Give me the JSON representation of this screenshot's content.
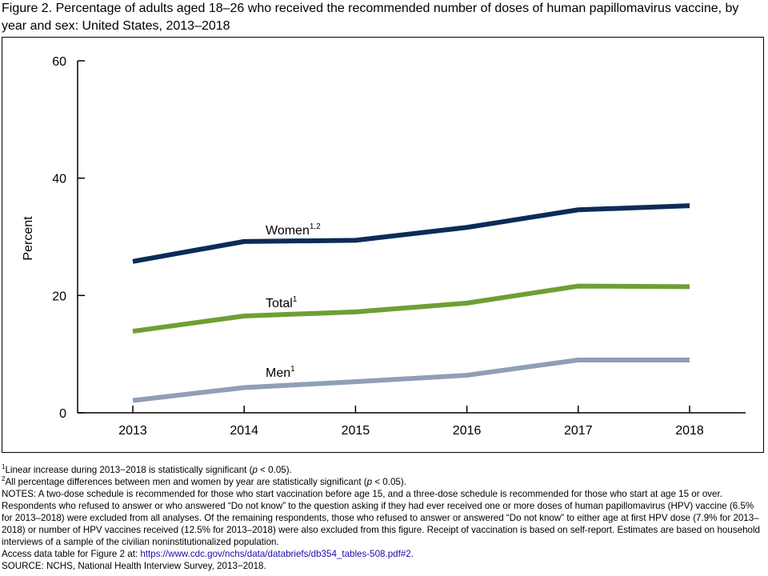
{
  "title": "Figure 2. Percentage of adults aged 18–26 who received the recommended number of doses of human papillomavirus vaccine, by year and sex: United States, 2013–2018",
  "colors": {
    "women": "#0b2c56",
    "total": "#6e9f34",
    "men": "#8f9fb5"
  },
  "chart_data": {
    "type": "line",
    "title": "Figure 2. Percentage of adults aged 18–26 who received the recommended number of doses of human papillomavirus vaccine, by year and sex: United States, 2013–2018",
    "xlabel": "",
    "ylabel": "Percent",
    "ylim": [
      0,
      60
    ],
    "yticks": [
      "0",
      "20",
      "40",
      "60"
    ],
    "categories": [
      "2013",
      "2014",
      "2015",
      "2016",
      "2017",
      "2018"
    ],
    "grid": false,
    "legend": "inline labels",
    "series": [
      {
        "name": "Women",
        "sup": "1,2",
        "values": [
          25.8,
          29.2,
          29.4,
          31.6,
          34.6,
          35.3
        ]
      },
      {
        "name": "Total",
        "sup": "1",
        "values": [
          13.9,
          16.5,
          17.2,
          18.7,
          21.6,
          21.5
        ]
      },
      {
        "name": "Men",
        "sup": "1",
        "values": [
          2.1,
          4.3,
          5.3,
          6.4,
          9.0,
          9.0
        ]
      }
    ]
  },
  "notes": {
    "fn1_sup": "1",
    "fn1_a": "Linear increase during 2013−2018 is statistically significant (",
    "fn1_p": "p",
    "fn1_b": " < 0.05).",
    "fn2_sup": "2",
    "fn2_a": "All percentage differences between men and women by year are statistically significant (",
    "fn2_p": "p",
    "fn2_b": " < 0.05).",
    "notes_text": "NOTES: A two-dose schedule is recommended for those who start vaccination before age 15, and a three-dose schedule is recommended for those who start at age 15 or over. Respondents who refused to answer or who answered “Do not know” to the question asking if they had ever received one or more doses of human papillomavirus (HPV) vaccine (6.5% for 2013–2018) were excluded from all analyses. Of the remaining respondents, those who refused to answer or answered “Do not know” to either age at first HPV dose (7.9% for 2013–2018) or number of HPV vaccines received (12.5% for 2013–2018) were also excluded from this figure. Receipt of vaccination is based on self-report. Estimates are based on household interviews of a sample of the civilian noninstitutionalized population.",
    "access_text": "Access data table for Figure 2 at: ",
    "access_link": "https://www.cdc.gov/nchs/data/databriefs/db354_tables-508.pdf#2",
    "access_end": ".",
    "source": "SOURCE: NCHS, National Health Interview Survey, 2013−2018."
  }
}
